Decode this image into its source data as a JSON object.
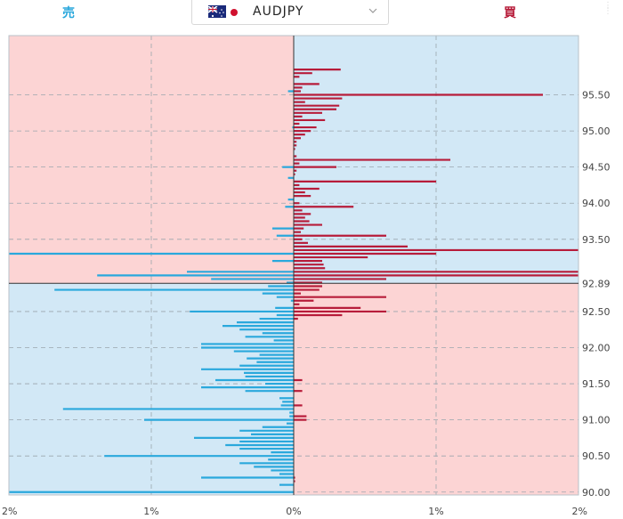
{
  "header": {
    "sell_label": "売",
    "buy_label": "買",
    "pair": "AUDJPY",
    "chevron_icon": "chevron-down-icon",
    "flags": [
      "australia-flag-icon",
      "japan-flag-icon"
    ]
  },
  "colors": {
    "sell_bar": "#2aa8dc",
    "buy_bar": "#b71c3a",
    "blue_bg": "#d2e8f6",
    "red_bg": "#fcd4d4",
    "sell_label": "#2aa8dc",
    "buy_label": "#b71c3a"
  },
  "chart_data": {
    "type": "bar",
    "orientation": "horizontal",
    "x_ticks": [
      "2%",
      "1%",
      "0%",
      "1%",
      "2%"
    ],
    "xlim": [
      -2,
      2
    ],
    "y_ticks": [
      "95.50",
      "95.00",
      "94.50",
      "94.00",
      "93.50",
      "92.89",
      "92.50",
      "92.00",
      "91.50",
      "91.00",
      "90.50",
      "90.00"
    ],
    "ylim": [
      89.96,
      96.32
    ],
    "current_price": 92.89,
    "grid": true,
    "series": [
      {
        "side": "sell",
        "points": [
          [
            95.55,
            0.04
          ],
          [
            95.05,
            0.01
          ],
          [
            94.5,
            0.08
          ],
          [
            94.35,
            0.04
          ],
          [
            94.05,
            0.04
          ],
          [
            93.95,
            0.06
          ],
          [
            93.65,
            0.15
          ],
          [
            93.55,
            0.12
          ],
          [
            93.3,
            2.0
          ],
          [
            93.2,
            0.15
          ],
          [
            93.05,
            0.75
          ],
          [
            93.0,
            1.38
          ],
          [
            92.95,
            0.58
          ],
          [
            92.9,
            0.05
          ],
          [
            92.85,
            0.18
          ],
          [
            92.8,
            1.68
          ],
          [
            92.75,
            0.22
          ],
          [
            92.7,
            0.12
          ],
          [
            92.65,
            0.02
          ],
          [
            92.55,
            0.13
          ],
          [
            92.5,
            0.73
          ],
          [
            92.45,
            0.12
          ],
          [
            92.4,
            0.24
          ],
          [
            92.35,
            0.4
          ],
          [
            92.3,
            0.5
          ],
          [
            92.25,
            0.38
          ],
          [
            92.2,
            0.22
          ],
          [
            92.15,
            0.34
          ],
          [
            92.1,
            0.14
          ],
          [
            92.05,
            0.65
          ],
          [
            92.0,
            0.65
          ],
          [
            91.95,
            0.42
          ],
          [
            91.9,
            0.24
          ],
          [
            91.85,
            0.33
          ],
          [
            91.8,
            0.26
          ],
          [
            91.75,
            0.38
          ],
          [
            91.7,
            0.65
          ],
          [
            91.65,
            0.35
          ],
          [
            91.6,
            0.34
          ],
          [
            91.55,
            0.55
          ],
          [
            91.5,
            0.2
          ],
          [
            91.45,
            0.65
          ],
          [
            91.4,
            0.34
          ],
          [
            91.3,
            0.1
          ],
          [
            91.25,
            0.08
          ],
          [
            91.2,
            0.09
          ],
          [
            91.15,
            1.62
          ],
          [
            91.1,
            0.03
          ],
          [
            91.05,
            0.03
          ],
          [
            91.0,
            1.05
          ],
          [
            90.95,
            0.05
          ],
          [
            90.9,
            0.22
          ],
          [
            90.85,
            0.38
          ],
          [
            90.8,
            0.3
          ],
          [
            90.75,
            0.7
          ],
          [
            90.7,
            0.38
          ],
          [
            90.65,
            0.48
          ],
          [
            90.6,
            0.38
          ],
          [
            90.55,
            0.16
          ],
          [
            90.5,
            1.33
          ],
          [
            90.45,
            0.18
          ],
          [
            90.4,
            0.38
          ],
          [
            90.35,
            0.28
          ],
          [
            90.3,
            0.16
          ],
          [
            90.25,
            0.1
          ],
          [
            90.2,
            0.65
          ],
          [
            90.1,
            0.1
          ],
          [
            90.0,
            2.0
          ]
        ]
      },
      {
        "side": "buy",
        "points": [
          [
            95.85,
            0.33
          ],
          [
            95.8,
            0.13
          ],
          [
            95.75,
            0.04
          ],
          [
            95.65,
            0.18
          ],
          [
            95.6,
            0.06
          ],
          [
            95.55,
            0.05
          ],
          [
            95.5,
            1.75
          ],
          [
            95.45,
            0.34
          ],
          [
            95.4,
            0.08
          ],
          [
            95.35,
            0.32
          ],
          [
            95.3,
            0.3
          ],
          [
            95.25,
            0.2
          ],
          [
            95.2,
            0.06
          ],
          [
            95.15,
            0.22
          ],
          [
            95.1,
            0.04
          ],
          [
            95.05,
            0.16
          ],
          [
            95.0,
            0.12
          ],
          [
            94.95,
            0.08
          ],
          [
            94.9,
            0.05
          ],
          [
            94.85,
            0.02
          ],
          [
            94.8,
            0.02
          ],
          [
            94.75,
            0.01
          ],
          [
            94.65,
            0.02
          ],
          [
            94.6,
            1.1
          ],
          [
            94.55,
            0.04
          ],
          [
            94.5,
            0.3
          ],
          [
            94.45,
            0.02
          ],
          [
            94.4,
            0.01
          ],
          [
            94.3,
            1.0
          ],
          [
            94.25,
            0.04
          ],
          [
            94.2,
            0.18
          ],
          [
            94.15,
            0.08
          ],
          [
            94.1,
            0.12
          ],
          [
            94.0,
            0.04
          ],
          [
            93.95,
            0.42
          ],
          [
            93.9,
            0.06
          ],
          [
            93.85,
            0.12
          ],
          [
            93.8,
            0.08
          ],
          [
            93.75,
            0.11
          ],
          [
            93.7,
            0.2
          ],
          [
            93.65,
            0.07
          ],
          [
            93.6,
            0.05
          ],
          [
            93.55,
            0.65
          ],
          [
            93.5,
            0.06
          ],
          [
            93.45,
            0.1
          ],
          [
            93.4,
            0.8
          ],
          [
            93.35,
            2.0
          ],
          [
            93.3,
            1.0
          ],
          [
            93.25,
            0.52
          ],
          [
            93.2,
            0.2
          ],
          [
            93.15,
            0.21
          ],
          [
            93.1,
            0.22
          ],
          [
            93.05,
            2.0
          ],
          [
            93.0,
            2.0
          ],
          [
            92.95,
            0.65
          ],
          [
            92.9,
            0.2
          ],
          [
            92.85,
            0.2
          ],
          [
            92.8,
            0.18
          ],
          [
            92.75,
            0.05
          ],
          [
            92.7,
            0.65
          ],
          [
            92.65,
            0.14
          ],
          [
            92.6,
            0.04
          ],
          [
            92.55,
            0.47
          ],
          [
            92.5,
            0.65
          ],
          [
            92.45,
            0.34
          ],
          [
            92.4,
            0.03
          ],
          [
            91.55,
            0.06
          ],
          [
            91.4,
            0.06
          ],
          [
            91.2,
            0.06
          ],
          [
            91.05,
            0.09
          ],
          [
            91.0,
            0.09
          ],
          [
            90.2,
            0.01
          ],
          [
            90.15,
            0.01
          ]
        ]
      }
    ]
  }
}
